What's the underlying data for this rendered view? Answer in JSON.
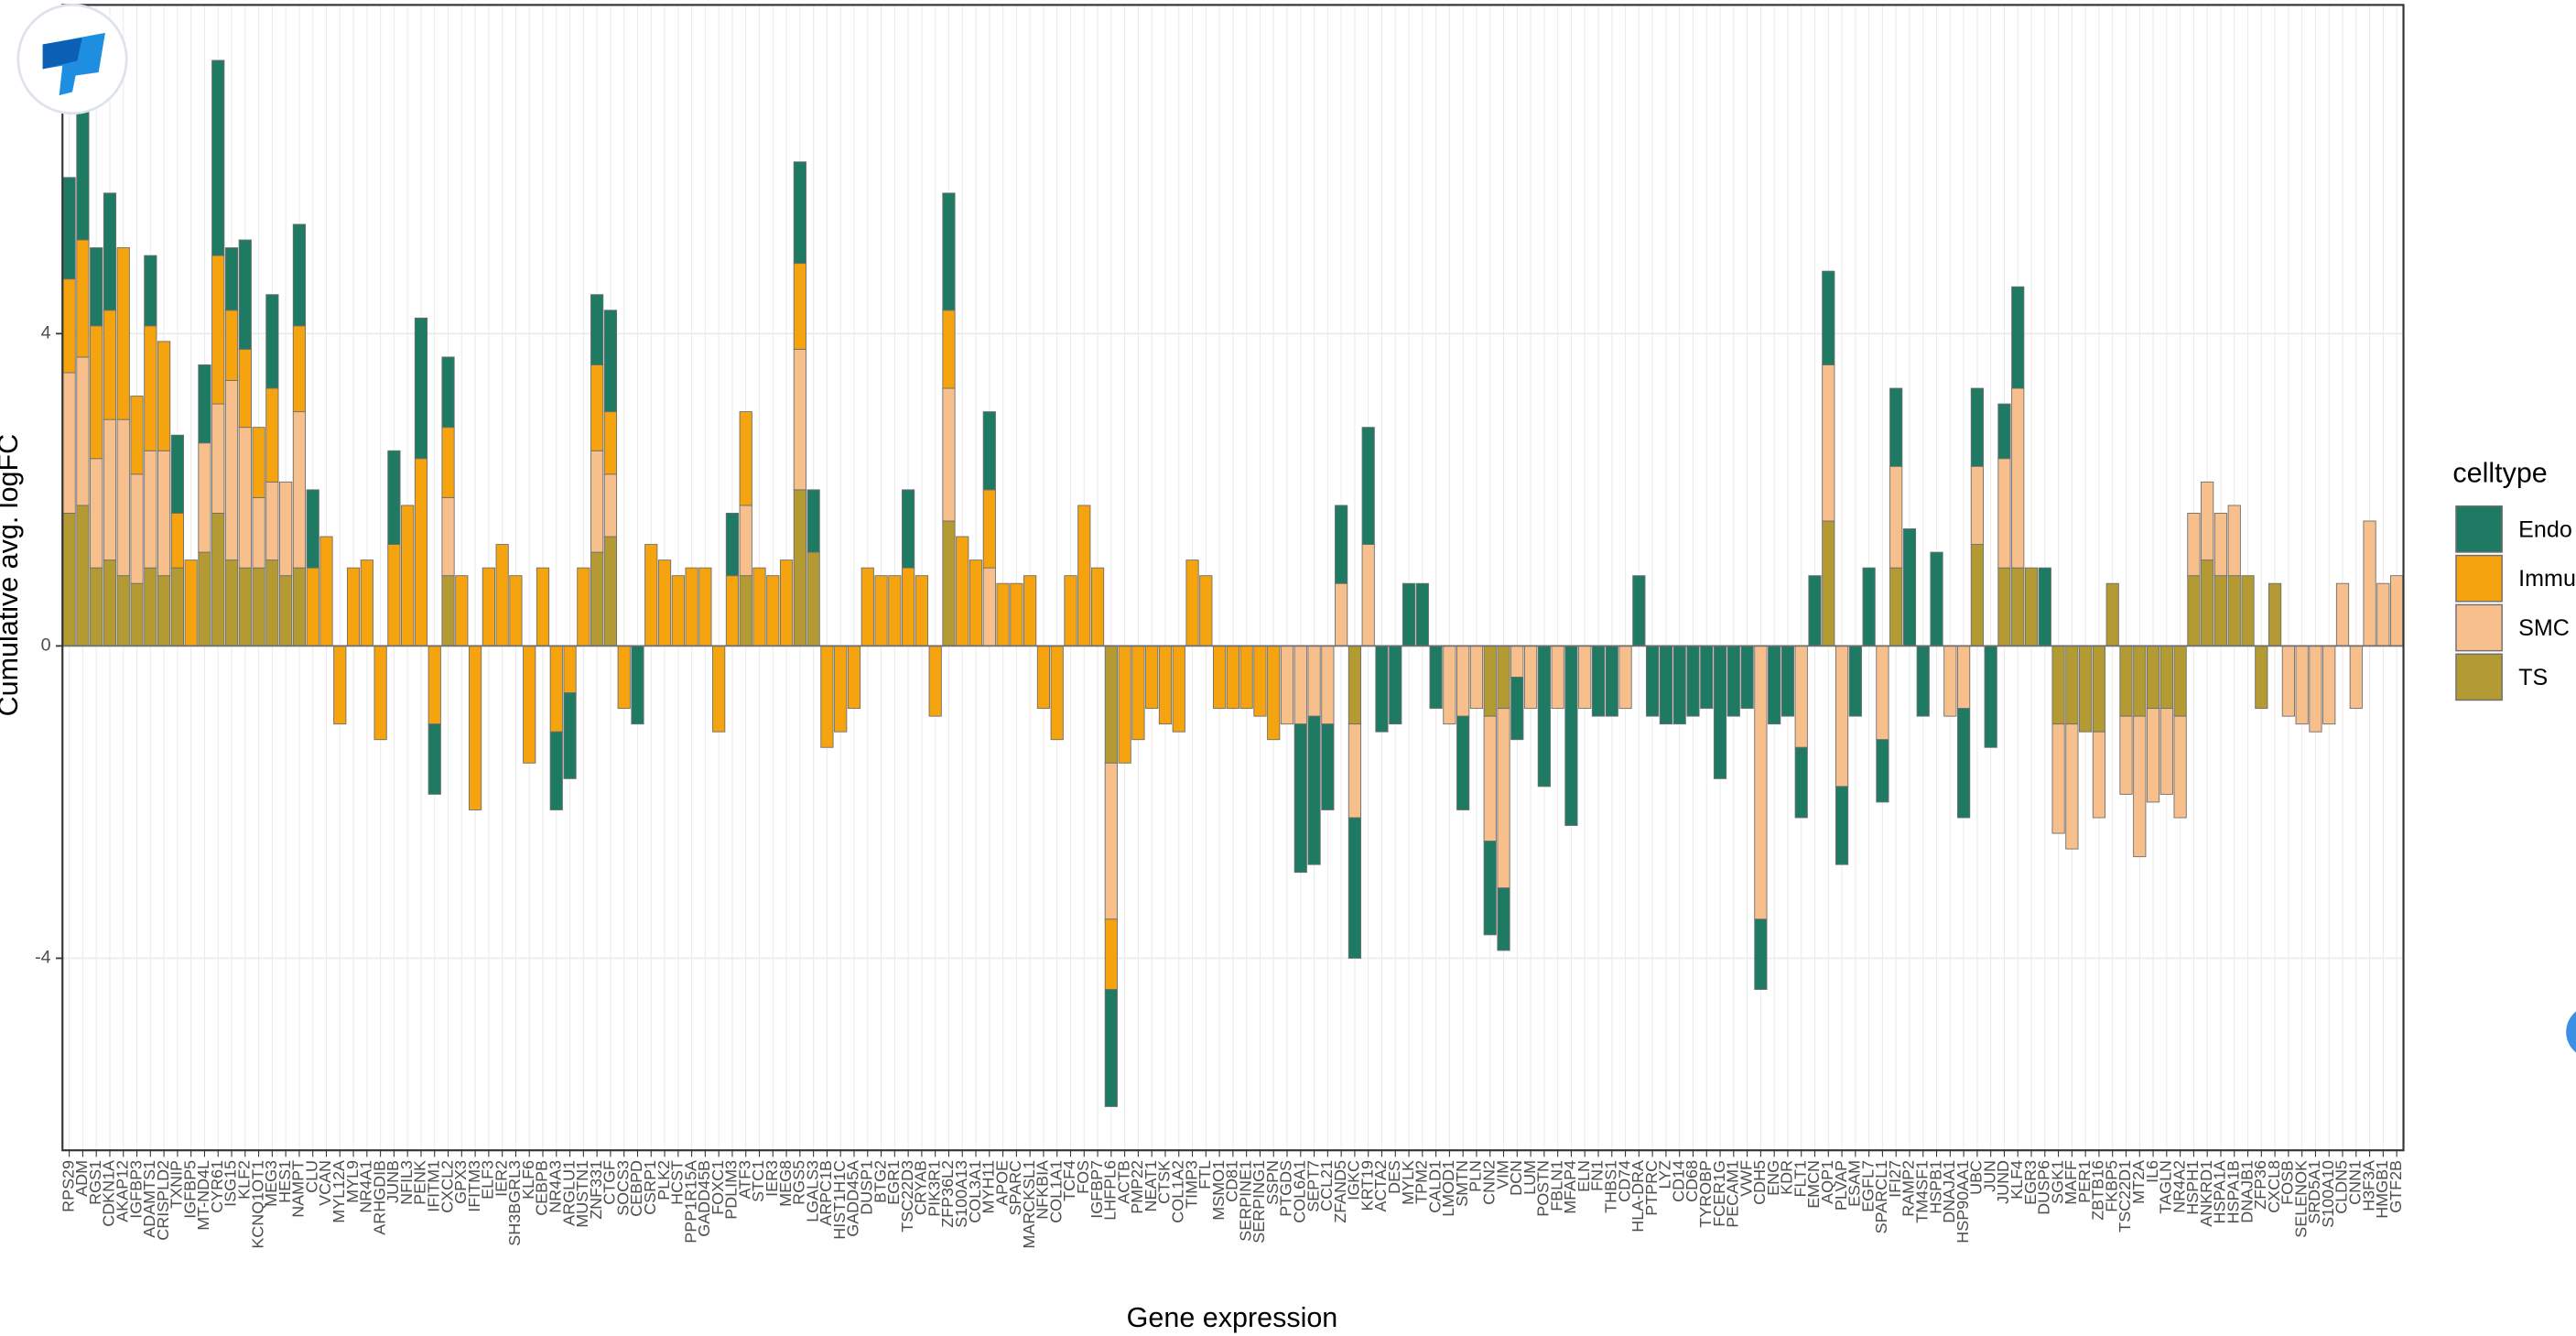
{
  "chart_data": {
    "type": "stacked_bar",
    "xlabel": "Gene expression",
    "ylabel": "Cumulative avg. logFC",
    "legend_title": "celltype",
    "legend": "right",
    "grid": true,
    "ylim": [
      -6.46,
      8.21
    ],
    "yticks": [
      -4,
      0,
      4
    ],
    "categories": [
      "RPS29",
      "ADM",
      "RGS1",
      "CDKN1A",
      "AKAP12",
      "IGFBP3",
      "ADAMTS1",
      "CRISPLD2",
      "TXNIP",
      "IGFBP5",
      "MT-ND4L",
      "CYR61",
      "ISG15",
      "KLF2",
      "KCNQ1OT1",
      "MEG3",
      "HES1",
      "NAMPT",
      "CLU",
      "VCAN",
      "MYL12A",
      "MYL9",
      "NR4A1",
      "ARHGDIB",
      "JUNB",
      "NFIL3",
      "PENK",
      "IFITM1",
      "CXCL2",
      "GPX3",
      "IFITM3",
      "ELF3",
      "IER2",
      "SH3BGRL3",
      "KLF6",
      "CEBPB",
      "NR4A3",
      "ARGLU1",
      "MUSTN1",
      "ZNF331",
      "CTGF",
      "SOCS3",
      "CEBPD",
      "CSRP1",
      "PLK2",
      "HCST",
      "PPP1R15A",
      "GADD45B",
      "FOXC1",
      "PDLIM3",
      "ATF3",
      "STC1",
      "IER3",
      "MEG8",
      "RGS5",
      "LGALS3",
      "ARPC1B",
      "HIST1H1C",
      "GADD45A",
      "DUSP1",
      "BTG2",
      "EGR1",
      "TSC22D3",
      "CRYAB",
      "PIK3R1",
      "ZFP36L2",
      "S100A13",
      "COL3A1",
      "MYH11",
      "APOE",
      "SPARC",
      "MARCKSL1",
      "NFKBIA",
      "COL1A1",
      "TCF4",
      "FOS",
      "IGFBP7",
      "LHFPL6",
      "ACTB",
      "PMP22",
      "NEAT1",
      "CTSK",
      "COL1A2",
      "TIMP3",
      "FTL",
      "MSMO1",
      "CD81",
      "SERPINE1",
      "SERPING1",
      "SSPN",
      "PTGDS",
      "COL6A1",
      "SEPT7",
      "CCL21",
      "ZFAND5",
      "IGKC",
      "KRT19",
      "ACTA2",
      "DES",
      "MYLK",
      "TPM2",
      "CALD1",
      "LMOD1",
      "SMTN",
      "PLN",
      "CNN2",
      "VIM",
      "DCN",
      "LUM",
      "POSTN",
      "FBLN1",
      "MFAP4",
      "ELN",
      "FN1",
      "THBS1",
      "CD74",
      "HLA-DRA",
      "PTPRC",
      "LYZ",
      "CD14",
      "CD68",
      "TYROBP",
      "FCER1G",
      "PECAM1",
      "VWF",
      "CDH5",
      "ENG",
      "KDR",
      "FLT1",
      "EMCN",
      "AQP1",
      "PLVAP",
      "ESAM",
      "EGFL7",
      "SPARCL1",
      "IFI27",
      "RAMP2",
      "TM4SF1",
      "HSPB1",
      "DNAJA1",
      "HSP90AA1",
      "UBC",
      "JUN",
      "JUND",
      "KLF4",
      "EGR3",
      "DUSP6",
      "SGK1",
      "MAFF",
      "PER1",
      "ZBTB16",
      "FKBP5",
      "TSC22D1",
      "MT2A",
      "IL6",
      "TAGLN",
      "NR4A2",
      "HSPH1",
      "ANKRD1",
      "HSPA1A",
      "HSPA1B",
      "DNAJB1",
      "ZFP36",
      "CXCL8",
      "FOSB",
      "SELENOK",
      "SRD5A1",
      "S100A10",
      "CLDN5",
      "CNN1",
      "H3F3A",
      "HMGB1",
      "GTF2B"
    ],
    "series": [
      {
        "name": "Endo",
        "color": "#1f7a64",
        "values": [
          1.3,
          1.8,
          1.0,
          1.5,
          0,
          0,
          0.9,
          0,
          1.0,
          0,
          1.0,
          2.5,
          0.8,
          1.4,
          0,
          1.2,
          0,
          1.3,
          1.0,
          0,
          0,
          0,
          0,
          0,
          1.2,
          0,
          1.8,
          -0.9,
          0.9,
          0,
          0,
          0,
          0,
          0,
          0,
          0,
          -1.0,
          -1.1,
          0,
          0.9,
          1.3,
          0,
          -1.0,
          0,
          0,
          0,
          0,
          0,
          0,
          0.8,
          0,
          0,
          0,
          0,
          1.3,
          0.8,
          0,
          0,
          0,
          0,
          0,
          0,
          1.0,
          0,
          0,
          1.5,
          0,
          0,
          1.0,
          0,
          0,
          0,
          0,
          0,
          0,
          0,
          0,
          -1.5,
          0,
          0,
          0,
          0,
          0,
          0,
          0,
          0,
          0,
          0,
          0,
          0,
          0,
          -1.9,
          -1.9,
          -1.1,
          1.0,
          -1.8,
          1.5,
          -1.1,
          -1.0,
          0.8,
          0.8,
          -0.8,
          0,
          -1.2,
          0,
          -1.2,
          -0.8,
          -0.8,
          0,
          -1.8,
          0,
          -2.3,
          0,
          -0.9,
          -0.9,
          0,
          0.9,
          -0.9,
          -1.0,
          -1.0,
          -0.9,
          -0.8,
          -1.7,
          -0.9,
          -0.8,
          -0.9,
          -1.0,
          -0.9,
          -0.9,
          0.9,
          1.2,
          -1.0,
          -0.9,
          1.0,
          -0.8,
          1.0,
          1.5,
          -0.9,
          1.2,
          0,
          -1.4,
          1.0,
          -1.3,
          0.7,
          1.3,
          0,
          1.0,
          0,
          0,
          0,
          0,
          0,
          0,
          0,
          0,
          0,
          0,
          0,
          0,
          0,
          0,
          0,
          0,
          0,
          0,
          0,
          0,
          0,
          0,
          0,
          0,
          0,
          0
        ]
      },
      {
        "name": "Immu",
        "color": "#f5a30f",
        "values": [
          1.2,
          1.5,
          1.7,
          1.4,
          2.2,
          1.0,
          1.6,
          1.4,
          0.7,
          1.1,
          0,
          1.9,
          0.9,
          1.0,
          0.9,
          1.2,
          0,
          1.1,
          1.0,
          1.4,
          -1.0,
          1.0,
          1.1,
          -1.2,
          1.3,
          1.8,
          2.4,
          -1.0,
          0.9,
          0.9,
          -2.1,
          1.0,
          1.3,
          0.9,
          -1.5,
          1.0,
          -1.1,
          -0.6,
          1.0,
          1.1,
          0.8,
          -0.8,
          0,
          1.3,
          1.1,
          0.9,
          1.0,
          1.0,
          -1.1,
          0.9,
          1.2,
          1.0,
          0.9,
          1.1,
          1.1,
          0,
          -1.3,
          -1.1,
          -0.8,
          1.0,
          0.9,
          0.9,
          1.0,
          0.9,
          -0.9,
          1.0,
          1.4,
          1.1,
          1.0,
          0.8,
          0.8,
          0.9,
          -0.8,
          -1.2,
          0.9,
          1.8,
          1.0,
          -0.9,
          -1.5,
          -1.2,
          -0.8,
          -1.0,
          -1.1,
          1.1,
          0.9,
          -0.8,
          -0.8,
          -0.8,
          -0.9,
          -1.2,
          0,
          0,
          0,
          0,
          0,
          0,
          0,
          0,
          0,
          0,
          0,
          0,
          0,
          0,
          0,
          0,
          0,
          0,
          0,
          0,
          0,
          0,
          0,
          0,
          0,
          0,
          0,
          0,
          0,
          0,
          0,
          0,
          0,
          0,
          0,
          0,
          0,
          0,
          0,
          0,
          0,
          0,
          0,
          0,
          0,
          0,
          0,
          0,
          0,
          0,
          0,
          0,
          0,
          0,
          0,
          0,
          0,
          0,
          0,
          0,
          0,
          0,
          0,
          0,
          0,
          0,
          0,
          0,
          0,
          0,
          0,
          0,
          0,
          0,
          0,
          0,
          0,
          0,
          0,
          0,
          0,
          0,
          0
        ]
      },
      {
        "name": "SMC",
        "color": "#f7bf8c",
        "values": [
          1.8,
          1.9,
          1.4,
          1.8,
          2.0,
          1.4,
          1.5,
          1.6,
          0,
          0,
          1.4,
          1.4,
          2.3,
          1.8,
          0.9,
          1.0,
          1.2,
          2.0,
          0,
          0,
          0,
          0,
          0,
          0,
          0,
          0,
          0,
          0,
          1.0,
          0,
          0,
          0,
          0,
          0,
          0,
          0,
          0,
          0,
          0,
          1.3,
          0.8,
          0,
          0,
          0,
          0,
          0,
          0,
          0,
          0,
          0,
          0.9,
          0,
          0,
          0,
          1.8,
          0,
          0,
          0,
          0,
          0,
          0,
          0,
          0,
          0,
          0,
          1.7,
          0,
          0,
          1.0,
          0,
          0,
          0,
          0,
          0,
          0,
          0,
          0,
          -2.0,
          0,
          0,
          0,
          0,
          0,
          0,
          0,
          0,
          0,
          0,
          0,
          0,
          -1.0,
          -1.0,
          -0.9,
          -1.0,
          0.8,
          -1.2,
          1.3,
          0,
          0,
          0,
          0,
          0,
          -1.0,
          -0.9,
          -0.8,
          -1.6,
          -2.3,
          -0.4,
          -0.8,
          0,
          -0.8,
          0,
          -0.8,
          0,
          0,
          -0.8,
          0,
          0,
          0,
          0,
          0,
          0,
          0,
          0,
          0,
          -3.5,
          0,
          0,
          -1.3,
          0,
          2.0,
          -1.8,
          0,
          0,
          -1.2,
          1.3,
          0,
          0,
          0,
          -0.9,
          -0.8,
          1.0,
          0,
          1.4,
          2.3,
          0,
          0,
          -1.4,
          -1.6,
          0,
          -1.1,
          0,
          -1.0,
          -1.8,
          -1.2,
          -1.1,
          -1.3,
          0.8,
          1.0,
          0.8,
          0.9,
          0,
          0,
          0,
          -0.9,
          -1.0,
          -1.1,
          -1.0,
          0.8,
          -0.8,
          1.6,
          0.8,
          0.9
        ]
      },
      {
        "name": "TS",
        "color": "#b39a32",
        "values": [
          1.7,
          1.8,
          1.0,
          1.1,
          0.9,
          0.8,
          1.0,
          0.9,
          1.0,
          0,
          1.2,
          1.7,
          1.1,
          1.0,
          1.0,
          1.1,
          0.9,
          1.0,
          0,
          0,
          0,
          0,
          0,
          0,
          0,
          0,
          0,
          0,
          0.9,
          0,
          0,
          0,
          0,
          0,
          0,
          0,
          0,
          0,
          0,
          1.2,
          1.4,
          0,
          0,
          0,
          0,
          0,
          0,
          0,
          0,
          0,
          0.9,
          0,
          0,
          0,
          2.0,
          1.2,
          0,
          0,
          0,
          0,
          0,
          0,
          0,
          0,
          0,
          1.6,
          0,
          0,
          0,
          0,
          0,
          0,
          0,
          0,
          0,
          0,
          0,
          -1.5,
          0,
          0,
          0,
          0,
          0,
          0,
          0,
          0,
          0,
          0,
          0,
          0,
          0,
          0,
          0,
          0,
          0,
          -1.0,
          0,
          0,
          0,
          0,
          0,
          0,
          0,
          0,
          0,
          -0.9,
          -0.8,
          0,
          0,
          0,
          0,
          0,
          0,
          0,
          0,
          0,
          0,
          0,
          0,
          0,
          0,
          0,
          0,
          0,
          0,
          0,
          0,
          0,
          0,
          0,
          1.6,
          0,
          0,
          0,
          0,
          1.0,
          0,
          0,
          0,
          0,
          0,
          1.3,
          0,
          1.0,
          1.0,
          1.0,
          0,
          -1.0,
          -1.0,
          -1.1,
          -1.1,
          0.8,
          -0.9,
          -0.9,
          -0.8,
          -0.8,
          -0.9,
          0.9,
          1.1,
          0.9,
          0.9,
          0.9,
          -0.8,
          0.8,
          0,
          0,
          0,
          0,
          0,
          0,
          0,
          0,
          0
        ]
      }
    ]
  }
}
